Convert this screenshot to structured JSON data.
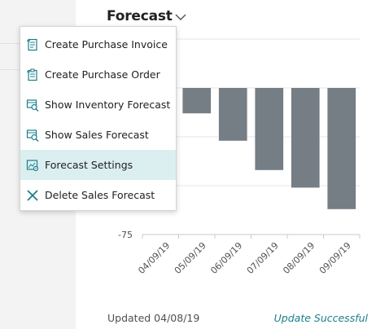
{
  "card": {
    "title": "Forecast",
    "footer_updated": "Updated 04/08/19",
    "footer_status": "Update Successful"
  },
  "menu": {
    "items": [
      {
        "label": "Create Purchase Invoice",
        "icon": "purchase-invoice-icon"
      },
      {
        "label": "Create Purchase Order",
        "icon": "purchase-order-icon"
      },
      {
        "label": "Show Inventory Forecast",
        "icon": "inventory-forecast-icon"
      },
      {
        "label": "Show Sales Forecast",
        "icon": "sales-forecast-icon"
      },
      {
        "label": "Forecast Settings",
        "icon": "settings-icon",
        "active": true
      },
      {
        "label": "Delete Sales Forecast",
        "icon": "delete-icon"
      }
    ]
  },
  "colors": {
    "accent": "#1a7f8a",
    "bar": "#757d85",
    "menu_active": "#dbeff0"
  },
  "chart_data": {
    "type": "bar",
    "categories": [
      "04/09/19",
      "05/09/19",
      "06/09/19",
      "07/09/19",
      "08/09/19",
      "09/09/19"
    ],
    "values": [
      0,
      -13,
      -27,
      -42,
      -51,
      -62
    ],
    "ylim": [
      -75,
      25
    ],
    "yticks_labeled": [
      "-75"
    ],
    "grid": true
  }
}
